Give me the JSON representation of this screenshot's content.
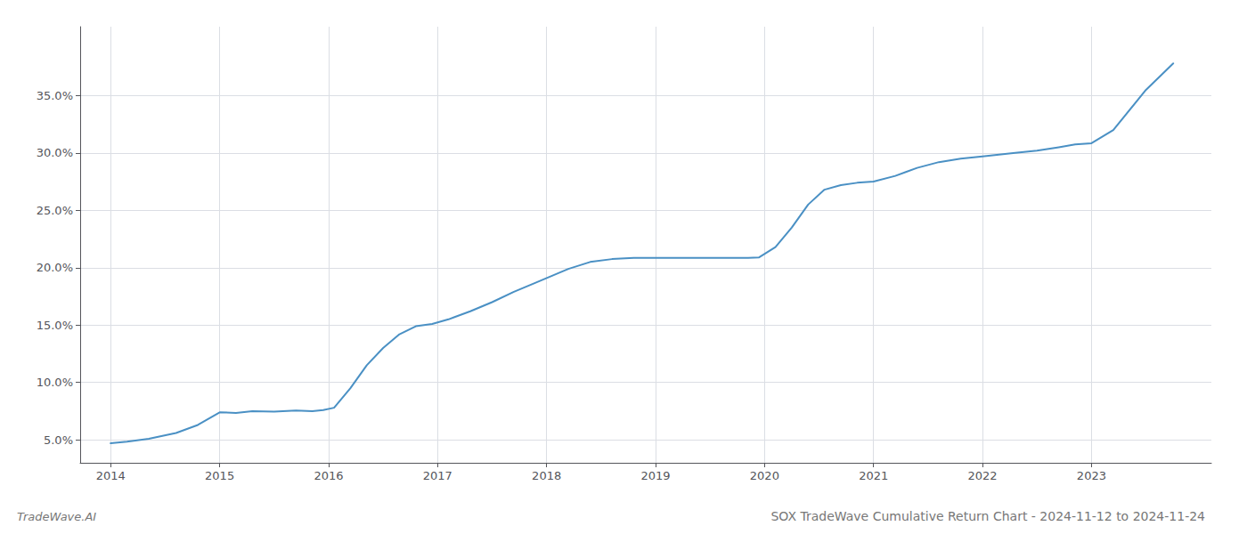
{
  "chart_data": {
    "type": "line",
    "title": "SOX TradeWave Cumulative Return Chart - 2024-11-12 to 2024-11-24",
    "annotations": [
      "TradeWave.AI"
    ],
    "x": [
      2014.0,
      2014.15,
      2014.35,
      2014.6,
      2014.8,
      2015.0,
      2015.15,
      2015.3,
      2015.5,
      2015.7,
      2015.85,
      2015.95,
      2016.05,
      2016.2,
      2016.35,
      2016.5,
      2016.65,
      2016.8,
      2016.95,
      2017.1,
      2017.3,
      2017.5,
      2017.7,
      2017.9,
      2018.05,
      2018.2,
      2018.4,
      2018.6,
      2018.8,
      2018.95,
      2019.1,
      2019.3,
      2019.5,
      2019.65,
      2019.75,
      2019.85,
      2019.95,
      2020.1,
      2020.25,
      2020.4,
      2020.55,
      2020.7,
      2020.85,
      2021.0,
      2021.2,
      2021.4,
      2021.6,
      2021.8,
      2022.0,
      2022.15,
      2022.3,
      2022.5,
      2022.7,
      2022.85,
      2023.0,
      2023.2,
      2023.5,
      2023.75
    ],
    "values": [
      4.7,
      4.85,
      5.1,
      5.6,
      6.3,
      7.4,
      7.35,
      7.5,
      7.45,
      7.55,
      7.5,
      7.6,
      7.8,
      9.5,
      11.5,
      13.0,
      14.2,
      14.9,
      15.1,
      15.5,
      16.2,
      17.0,
      17.9,
      18.7,
      19.3,
      19.9,
      20.5,
      20.75,
      20.85,
      20.85,
      20.85,
      20.85,
      20.85,
      20.85,
      20.85,
      20.85,
      20.9,
      21.8,
      23.5,
      25.5,
      26.8,
      27.2,
      27.4,
      27.5,
      28.0,
      28.7,
      29.2,
      29.5,
      29.7,
      29.85,
      30.0,
      30.2,
      30.5,
      30.75,
      30.85,
      32.0,
      35.5,
      37.8
    ],
    "color": "#4a90c4",
    "xlim": [
      2013.72,
      2024.1
    ],
    "xticks": [
      2014,
      2015,
      2016,
      2017,
      2018,
      2019,
      2020,
      2021,
      2022,
      2023
    ],
    "ylim": [
      3.0,
      41.0
    ],
    "yticks": [
      {
        "value": 5.0,
        "label": "5.0%"
      },
      {
        "value": 10.0,
        "label": "10.0%"
      },
      {
        "value": 15.0,
        "label": "15.0%"
      },
      {
        "value": 20.0,
        "label": "20.0%"
      },
      {
        "value": 25.0,
        "label": "25.0%"
      },
      {
        "value": 30.0,
        "label": "30.0%"
      },
      {
        "value": 35.0,
        "label": "35.0%"
      }
    ],
    "grid": true
  }
}
